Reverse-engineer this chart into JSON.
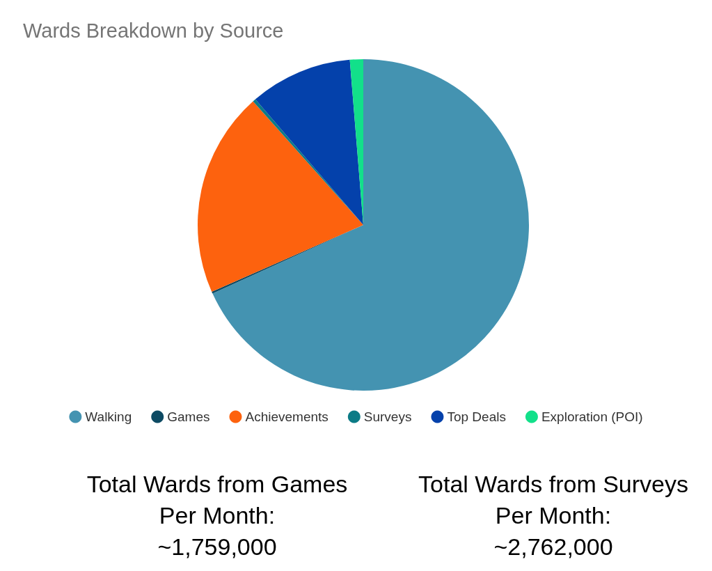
{
  "chart_data": {
    "type": "pie",
    "title": "Wards Breakdown by Source",
    "categories": [
      "Walking",
      "Games",
      "Achievements",
      "Surveys",
      "Top Deals",
      "Exploration (POI)"
    ],
    "values": [
      68.2,
      0.2,
      20.0,
      0.3,
      10.0,
      1.3
    ],
    "colors": [
      "#4493b1",
      "#0d4a63",
      "#fd620e",
      "#0c7b86",
      "#0441ab",
      "#12e08a"
    ],
    "legend": "bottom",
    "annotations": [
      "Total Wards from Games\nPer Month:\n~1,759,000",
      "Total Wards from Surveys\nPer Month:\n~2,762,000"
    ]
  }
}
